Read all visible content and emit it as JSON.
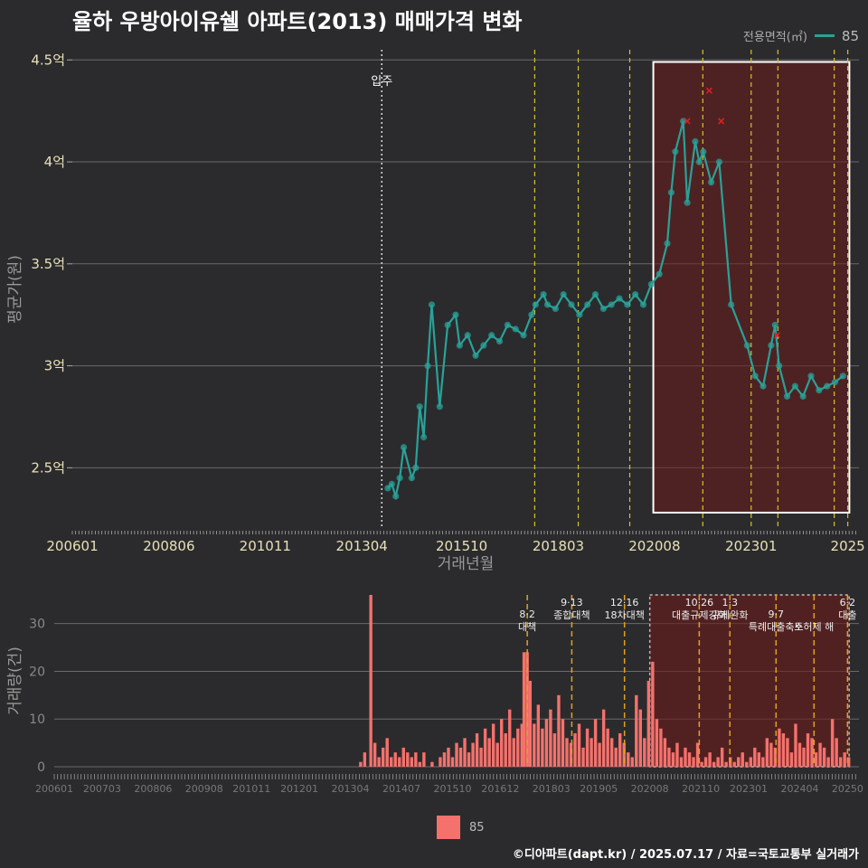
{
  "title": "율하 우방아이유쉘 아파트(2013) 매매가격 변화",
  "legend_top": {
    "title": "전용면적(㎡)",
    "value": "85"
  },
  "legend_bottom": {
    "value": "85"
  },
  "footer": "©디아파트(dapt.kr) / 2025.07.17 / 자료=국토교통부 실거래가",
  "colors": {
    "series": "#2aa198",
    "bar": "#f5716c",
    "highlight": "#6b1b1b",
    "policy": "#d4c32a",
    "policy_bar": "#e0a020"
  },
  "chart_data": [
    {
      "type": "line",
      "xlabel": "거래년월",
      "ylabel": "평균가(원)",
      "ylim": [
        2.2,
        4.55
      ],
      "yticks": [
        {
          "value": 2.5,
          "label": "2.5억"
        },
        {
          "value": 3.0,
          "label": "3억"
        },
        {
          "value": 3.5,
          "label": "3.5억"
        },
        {
          "value": 4.0,
          "label": "4억"
        },
        {
          "value": 4.5,
          "label": "4.5억"
        }
      ],
      "xlim": [
        2006.0,
        2025.7
      ],
      "xticks": [
        {
          "value": 2006.0,
          "label": "200601"
        },
        {
          "value": 2008.42,
          "label": "200806"
        },
        {
          "value": 2010.83,
          "label": "201011"
        },
        {
          "value": 2013.25,
          "label": "201304"
        },
        {
          "value": 2015.75,
          "label": "201510"
        },
        {
          "value": 2018.17,
          "label": "201803"
        },
        {
          "value": 2020.58,
          "label": "202008"
        },
        {
          "value": 2023.0,
          "label": "202301"
        },
        {
          "value": 2025.42,
          "label": "2025"
        }
      ],
      "movein": {
        "x": 2013.75,
        "label": "입주"
      },
      "policy_lines": [
        2017.58,
        2018.67,
        2019.96,
        2021.79,
        2023.0,
        2023.67,
        2025.08,
        2025.42
      ],
      "highlight": {
        "x0": 2020.55,
        "x1": 2025.46,
        "y0": 2.28,
        "y1": 4.49
      },
      "series": [
        {
          "name": "85",
          "x": [
            2013.9,
            2014.0,
            2014.1,
            2014.2,
            2014.3,
            2014.5,
            2014.6,
            2014.7,
            2014.8,
            2014.9,
            2015.0,
            2015.2,
            2015.4,
            2015.6,
            2015.7,
            2015.9,
            2016.1,
            2016.3,
            2016.5,
            2016.7,
            2016.9,
            2017.1,
            2017.3,
            2017.5,
            2017.6,
            2017.8,
            2017.9,
            2018.1,
            2018.3,
            2018.5,
            2018.7,
            2018.9,
            2019.1,
            2019.3,
            2019.5,
            2019.7,
            2019.9,
            2020.1,
            2020.3,
            2020.5,
            2020.7,
            2020.9,
            2021.0,
            2021.1,
            2021.3,
            2021.4,
            2021.6,
            2021.7,
            2021.8,
            2022.0,
            2022.2,
            2022.5,
            2022.9,
            2023.1,
            2023.3,
            2023.5,
            2023.6,
            2023.7,
            2023.9,
            2024.1,
            2024.3,
            2024.5,
            2024.7,
            2024.9,
            2025.1,
            2025.3
          ],
          "values": [
            2.4,
            2.42,
            2.36,
            2.45,
            2.6,
            2.45,
            2.5,
            2.8,
            2.65,
            3.0,
            3.3,
            2.8,
            3.2,
            3.25,
            3.1,
            3.15,
            3.05,
            3.1,
            3.15,
            3.12,
            3.2,
            3.18,
            3.15,
            3.25,
            3.3,
            3.35,
            3.3,
            3.28,
            3.35,
            3.3,
            3.25,
            3.3,
            3.35,
            3.28,
            3.3,
            3.33,
            3.3,
            3.35,
            3.3,
            3.4,
            3.45,
            3.6,
            3.85,
            4.05,
            4.2,
            3.8,
            4.1,
            4.0,
            4.05,
            3.9,
            4.0,
            3.3,
            3.1,
            2.95,
            2.9,
            3.1,
            3.2,
            3.0,
            2.85,
            2.9,
            2.85,
            2.95,
            2.88,
            2.9,
            2.92,
            2.95
          ]
        }
      ],
      "markers_x": [
        {
          "x": 2021.4,
          "value": 4.2
        },
        {
          "x": 2021.95,
          "value": 4.35
        },
        {
          "x": 2022.25,
          "value": 4.2
        },
        {
          "x": 2023.65,
          "value": 3.15
        }
      ]
    },
    {
      "type": "bar",
      "xlabel": "",
      "ylabel": "거래량(건)",
      "ylim": [
        0,
        36
      ],
      "yticks": [
        0,
        10,
        20,
        30
      ],
      "xticks": [
        {
          "value": 2006.0,
          "label": "200601"
        },
        {
          "value": 2007.17,
          "label": "200703"
        },
        {
          "value": 2008.42,
          "label": "200806"
        },
        {
          "value": 2009.67,
          "label": "200908"
        },
        {
          "value": 2010.83,
          "label": "201011"
        },
        {
          "value": 2012.0,
          "label": "201201"
        },
        {
          "value": 2013.25,
          "label": "201304"
        },
        {
          "value": 2014.5,
          "label": "201407"
        },
        {
          "value": 2015.75,
          "label": "201510"
        },
        {
          "value": 2016.92,
          "label": "201612"
        },
        {
          "value": 2018.17,
          "label": "201803"
        },
        {
          "value": 2019.33,
          "label": "201905"
        },
        {
          "value": 2020.58,
          "label": "202008"
        },
        {
          "value": 2021.83,
          "label": "202110"
        },
        {
          "value": 2023.0,
          "label": "202301"
        },
        {
          "value": 2024.25,
          "label": "202404"
        },
        {
          "value": 2025.42,
          "label": "20250"
        }
      ],
      "policies": [
        {
          "x": 2017.58,
          "date": "8·2",
          "label": "대책",
          "row": 1
        },
        {
          "x": 2018.67,
          "date": "9·13",
          "label": "종합대책",
          "row": 0
        },
        {
          "x": 2019.96,
          "date": "12·16",
          "label": "18차대책",
          "row": 0
        },
        {
          "x": 2021.79,
          "date": "10·26",
          "label": "대출규제강화",
          "row": 0
        },
        {
          "x": 2022.54,
          "date": "1·3",
          "label": "규제완화",
          "row": 0
        },
        {
          "x": 2023.67,
          "date": "9·7",
          "label": "특례대출축소",
          "row": 1
        },
        {
          "x": 2024.6,
          "date": "",
          "label": "토허제 해",
          "row": 1
        },
        {
          "x": 2025.42,
          "date": "6·2",
          "label": "대출",
          "row": 0
        }
      ],
      "highlight": {
        "x0": 2020.58,
        "x1": 2025.46
      },
      "x": [
        2013.5,
        2013.6,
        2013.75,
        2013.85,
        2013.95,
        2014.05,
        2014.15,
        2014.25,
        2014.35,
        2014.45,
        2014.55,
        2014.65,
        2014.75,
        2014.85,
        2014.95,
        2015.05,
        2015.25,
        2015.45,
        2015.55,
        2015.65,
        2015.75,
        2015.85,
        2015.95,
        2016.05,
        2016.15,
        2016.25,
        2016.35,
        2016.45,
        2016.55,
        2016.65,
        2016.75,
        2016.85,
        2016.95,
        2017.05,
        2017.15,
        2017.25,
        2017.35,
        2017.45,
        2017.5,
        2017.58,
        2017.65,
        2017.75,
        2017.85,
        2017.95,
        2018.05,
        2018.15,
        2018.25,
        2018.35,
        2018.45,
        2018.55,
        2018.65,
        2018.75,
        2018.85,
        2018.95,
        2019.05,
        2019.15,
        2019.25,
        2019.35,
        2019.45,
        2019.55,
        2019.65,
        2019.75,
        2019.85,
        2019.95,
        2020.05,
        2020.15,
        2020.25,
        2020.35,
        2020.45,
        2020.55,
        2020.65,
        2020.75,
        2020.85,
        2020.95,
        2021.05,
        2021.15,
        2021.25,
        2021.35,
        2021.45,
        2021.55,
        2021.65,
        2021.75,
        2021.85,
        2021.95,
        2022.05,
        2022.15,
        2022.25,
        2022.35,
        2022.45,
        2022.55,
        2022.65,
        2022.75,
        2022.85,
        2022.95,
        2023.05,
        2023.15,
        2023.25,
        2023.35,
        2023.45,
        2023.55,
        2023.65,
        2023.75,
        2023.85,
        2023.95,
        2024.05,
        2024.15,
        2024.25,
        2024.35,
        2024.45,
        2024.55,
        2024.65,
        2024.75,
        2024.85,
        2024.95,
        2025.05,
        2025.15,
        2025.25,
        2025.35,
        2025.45
      ],
      "values": [
        1,
        3,
        36,
        5,
        2,
        4,
        6,
        2,
        3,
        2,
        4,
        3,
        2,
        3,
        1,
        3,
        1,
        2,
        3,
        4,
        2,
        5,
        4,
        6,
        3,
        5,
        7,
        4,
        8,
        6,
        9,
        5,
        10,
        7,
        12,
        6,
        8,
        9,
        24,
        24,
        18,
        9,
        13,
        8,
        10,
        12,
        7,
        15,
        10,
        6,
        5,
        7,
        9,
        4,
        8,
        6,
        10,
        5,
        12,
        8,
        6,
        4,
        7,
        5,
        3,
        2,
        15,
        12,
        6,
        18,
        22,
        10,
        8,
        6,
        4,
        3,
        5,
        2,
        4,
        3,
        2,
        5,
        1,
        2,
        3,
        1,
        2,
        4,
        1,
        2,
        1,
        2,
        3,
        1,
        2,
        4,
        3,
        2,
        6,
        5,
        4,
        8,
        7,
        6,
        3,
        9,
        5,
        4,
        7,
        6,
        3,
        5,
        4,
        2,
        10,
        6,
        2,
        3,
        2
      ]
    }
  ]
}
